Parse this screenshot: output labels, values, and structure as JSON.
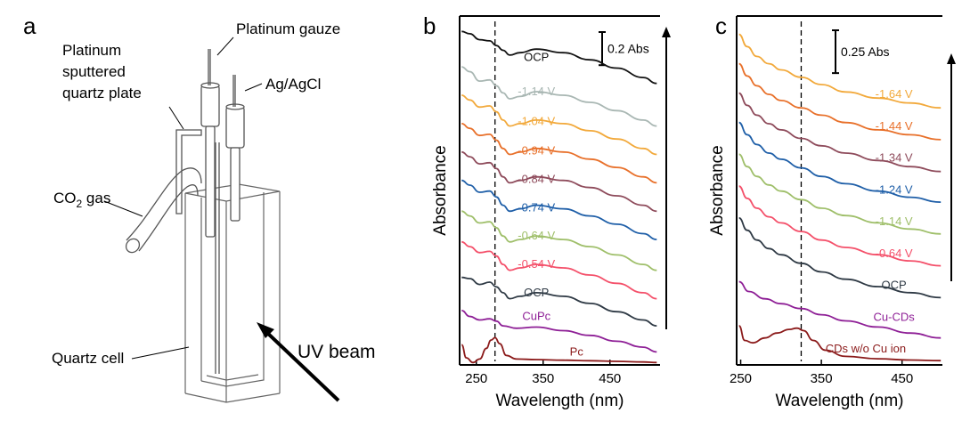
{
  "panels": {
    "a": {
      "letter": "a",
      "labels": {
        "platinum_gauze": "Platinum gauze",
        "sputtered": [
          "Platinum",
          "sputtered",
          "quartz plate"
        ],
        "ag_agcl": "Ag/AgCl",
        "co2_main": "CO",
        "co2_sub": "2",
        "co2_tail": " gas",
        "quartz_cell": "Quartz cell",
        "uv_beam": "UV beam"
      }
    },
    "b": {
      "letter": "b"
    },
    "c": {
      "letter": "c"
    }
  },
  "chart_data": [
    {
      "panel": "b",
      "type": "line",
      "xlabel": "Wavelength (nm)",
      "ylabel": "Absorbance",
      "xlim": [
        225,
        525
      ],
      "xticks": [
        250,
        350,
        450
      ],
      "yticks": [],
      "scale_bar": "0.2 Abs",
      "dashed_line_x": 278,
      "arrow_direction": "up",
      "grid": false,
      "series": [
        {
          "name": "Pc",
          "color": "#8b1a1a",
          "label_x": 400,
          "label_y": 0.08,
          "x": [
            228,
            235,
            245,
            255,
            265,
            272,
            278,
            285,
            295,
            310,
            340,
            380,
            420,
            460,
            500,
            520
          ],
          "y": [
            0.17,
            0.06,
            0.02,
            0.05,
            0.14,
            0.21,
            0.23,
            0.18,
            0.08,
            0.05,
            0.045,
            0.04,
            0.035,
            0.03,
            0.025,
            0.02
          ]
        },
        {
          "name": "CuPc",
          "color": "#8e1f96",
          "label_x": 340,
          "label_y": 0.38,
          "x": [
            228,
            240,
            255,
            270,
            280,
            290,
            310,
            340,
            380,
            420,
            460,
            500,
            520
          ],
          "y": [
            0.46,
            0.41,
            0.38,
            0.39,
            0.37,
            0.33,
            0.31,
            0.32,
            0.29,
            0.25,
            0.2,
            0.15,
            0.11
          ]
        },
        {
          "name": "OCP",
          "color": "#2f3a45",
          "label_x": 340,
          "label_y": 0.58,
          "x": [
            228,
            240,
            255,
            270,
            280,
            290,
            300,
            315,
            340,
            380,
            420,
            460,
            500,
            520
          ],
          "y": [
            0.74,
            0.73,
            0.68,
            0.7,
            0.66,
            0.61,
            0.56,
            0.58,
            0.61,
            0.58,
            0.52,
            0.45,
            0.38,
            0.33
          ]
        },
        {
          "name": "-0.54 V",
          "color": "#f4506a",
          "label_x": 340,
          "label_y": 0.82,
          "x": [
            228,
            240,
            255,
            270,
            280,
            290,
            300,
            315,
            340,
            380,
            420,
            460,
            500,
            520
          ],
          "y": [
            1.04,
            1.0,
            0.95,
            0.96,
            0.92,
            0.85,
            0.8,
            0.82,
            0.85,
            0.82,
            0.76,
            0.69,
            0.61,
            0.56
          ]
        },
        {
          "name": "-0.64 V",
          "color": "#9fbf6a",
          "label_x": 340,
          "label_y": 1.06,
          "x": [
            228,
            240,
            255,
            270,
            280,
            290,
            300,
            315,
            340,
            380,
            420,
            460,
            500,
            520
          ],
          "y": [
            1.3,
            1.26,
            1.2,
            1.21,
            1.16,
            1.09,
            1.04,
            1.06,
            1.09,
            1.06,
            1.0,
            0.93,
            0.85,
            0.8
          ]
        },
        {
          "name": "-0.74 V",
          "color": "#1f5fa8",
          "label_x": 340,
          "label_y": 1.3,
          "x": [
            228,
            240,
            255,
            270,
            280,
            290,
            300,
            315,
            340,
            380,
            420,
            460,
            500,
            520
          ],
          "y": [
            1.56,
            1.52,
            1.46,
            1.47,
            1.42,
            1.35,
            1.3,
            1.32,
            1.35,
            1.32,
            1.26,
            1.19,
            1.11,
            1.06
          ]
        },
        {
          "name": "-0.84 V",
          "color": "#8e4b5b",
          "label_x": 340,
          "label_y": 1.54,
          "x": [
            228,
            240,
            255,
            270,
            280,
            290,
            300,
            315,
            340,
            380,
            420,
            460,
            500,
            520
          ],
          "y": [
            1.8,
            1.76,
            1.7,
            1.71,
            1.66,
            1.59,
            1.54,
            1.56,
            1.59,
            1.56,
            1.5,
            1.43,
            1.35,
            1.3
          ]
        },
        {
          "name": "-0.94 V",
          "color": "#e8702a",
          "label_x": 340,
          "label_y": 1.78,
          "x": [
            228,
            240,
            255,
            270,
            280,
            290,
            300,
            315,
            340,
            380,
            420,
            460,
            500,
            520
          ],
          "y": [
            2.04,
            2.0,
            1.94,
            1.95,
            1.9,
            1.83,
            1.78,
            1.8,
            1.83,
            1.8,
            1.74,
            1.67,
            1.59,
            1.54
          ]
        },
        {
          "name": "-1.04 V",
          "color": "#f2a93b",
          "label_x": 340,
          "label_y": 2.03,
          "x": [
            228,
            240,
            255,
            270,
            280,
            290,
            300,
            315,
            340,
            380,
            420,
            460,
            500,
            520
          ],
          "y": [
            2.28,
            2.24,
            2.18,
            2.19,
            2.14,
            2.07,
            2.02,
            2.04,
            2.07,
            2.04,
            1.98,
            1.91,
            1.83,
            1.78
          ]
        },
        {
          "name": "-1.14 V",
          "color": "#a9b7b3",
          "label_x": 340,
          "label_y": 2.28,
          "x": [
            228,
            240,
            255,
            270,
            280,
            290,
            300,
            315,
            340,
            380,
            420,
            460,
            500,
            520
          ],
          "y": [
            2.52,
            2.48,
            2.4,
            2.41,
            2.36,
            2.3,
            2.25,
            2.27,
            2.31,
            2.28,
            2.22,
            2.15,
            2.07,
            2.02
          ]
        },
        {
          "name": "OCP",
          "color": "#111111",
          "label_x": 340,
          "label_y": 2.57,
          "x": [
            228,
            240,
            255,
            270,
            280,
            290,
            300,
            315,
            340,
            380,
            420,
            460,
            500,
            520
          ],
          "y": [
            2.82,
            2.8,
            2.75,
            2.74,
            2.7,
            2.66,
            2.62,
            2.64,
            2.67,
            2.64,
            2.58,
            2.51,
            2.43,
            2.38
          ]
        }
      ]
    },
    {
      "panel": "c",
      "type": "line",
      "xlabel": "Wavelength (nm)",
      "ylabel": "Absorbance",
      "xlim": [
        245,
        500
      ],
      "xticks": [
        250,
        350,
        450
      ],
      "yticks": [],
      "scale_bar": "0.25 Abs",
      "dashed_line_x": 325,
      "arrow_direction": "up",
      "grid": false,
      "series": [
        {
          "name": "CDs w/o Cu ion",
          "color": "#8b1a1a",
          "label_x": 405,
          "label_y": 0.1,
          "x": [
            248,
            255,
            265,
            280,
            295,
            310,
            320,
            328,
            340,
            355,
            380,
            420,
            460,
            498
          ],
          "y": [
            0.32,
            0.2,
            0.18,
            0.22,
            0.26,
            0.29,
            0.3,
            0.28,
            0.2,
            0.12,
            0.07,
            0.05,
            0.04,
            0.035
          ]
        },
        {
          "name": "Cu-CDs",
          "color": "#8e1f96",
          "label_x": 440,
          "label_y": 0.36,
          "x": [
            248,
            260,
            280,
            300,
            325,
            350,
            380,
            420,
            460,
            498
          ],
          "y": [
            0.68,
            0.6,
            0.54,
            0.5,
            0.46,
            0.41,
            0.36,
            0.31,
            0.26,
            0.22
          ]
        },
        {
          "name": "OCP",
          "color": "#2f3a45",
          "label_x": 440,
          "label_y": 0.62,
          "x": [
            248,
            258,
            270,
            285,
            300,
            325,
            350,
            380,
            420,
            460,
            498
          ],
          "y": [
            1.2,
            1.1,
            1.02,
            0.95,
            0.9,
            0.83,
            0.76,
            0.7,
            0.64,
            0.59,
            0.55
          ]
        },
        {
          "name": "-0.64 V",
          "color": "#f4506a",
          "label_x": 440,
          "label_y": 0.88,
          "x": [
            248,
            258,
            270,
            285,
            300,
            325,
            350,
            380,
            420,
            460,
            498
          ],
          "y": [
            1.46,
            1.36,
            1.28,
            1.21,
            1.16,
            1.09,
            1.02,
            0.96,
            0.9,
            0.85,
            0.81
          ]
        },
        {
          "name": "-1.14 V",
          "color": "#9fbf6a",
          "label_x": 440,
          "label_y": 1.14,
          "x": [
            248,
            258,
            270,
            285,
            300,
            325,
            350,
            380,
            420,
            460,
            498
          ],
          "y": [
            1.72,
            1.62,
            1.54,
            1.47,
            1.42,
            1.35,
            1.28,
            1.22,
            1.16,
            1.11,
            1.07
          ]
        },
        {
          "name": "-1.24 V",
          "color": "#1f5fa8",
          "label_x": 440,
          "label_y": 1.4,
          "x": [
            248,
            258,
            270,
            285,
            300,
            325,
            350,
            380,
            420,
            460,
            498
          ],
          "y": [
            1.98,
            1.88,
            1.8,
            1.73,
            1.68,
            1.61,
            1.54,
            1.48,
            1.42,
            1.37,
            1.33
          ]
        },
        {
          "name": "-1.34 V",
          "color": "#8e4b5b",
          "label_x": 440,
          "label_y": 1.66,
          "x": [
            248,
            258,
            270,
            285,
            300,
            325,
            350,
            380,
            420,
            460,
            498
          ],
          "y": [
            2.22,
            2.12,
            2.04,
            1.97,
            1.92,
            1.85,
            1.79,
            1.73,
            1.67,
            1.62,
            1.58
          ]
        },
        {
          "name": "-1.44 V",
          "color": "#e8702a",
          "label_x": 440,
          "label_y": 1.92,
          "x": [
            248,
            258,
            270,
            285,
            300,
            325,
            350,
            380,
            420,
            460,
            498
          ],
          "y": [
            2.46,
            2.36,
            2.28,
            2.21,
            2.16,
            2.1,
            2.04,
            1.98,
            1.92,
            1.88,
            1.84
          ]
        },
        {
          "name": "-1.64 V",
          "color": "#f2a93b",
          "label_x": 440,
          "label_y": 2.18,
          "x": [
            248,
            258,
            270,
            285,
            300,
            325,
            350,
            380,
            420,
            460,
            498
          ],
          "y": [
            2.7,
            2.6,
            2.52,
            2.46,
            2.41,
            2.35,
            2.29,
            2.23,
            2.18,
            2.14,
            2.1
          ]
        }
      ]
    }
  ]
}
